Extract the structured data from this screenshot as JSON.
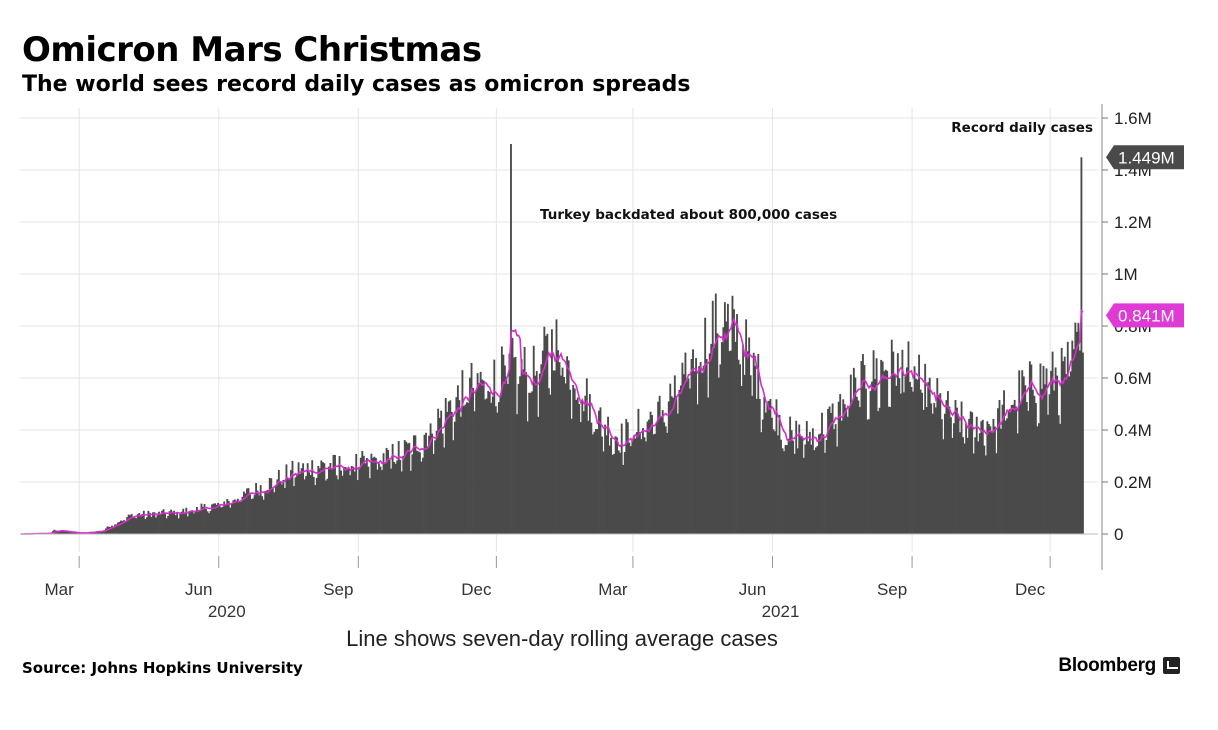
{
  "header": {
    "title": "Omicron Mars Christmas",
    "subtitle": "The world sees record daily cases as omicron spreads"
  },
  "footer": {
    "source": "Source: Johns Hopkins University",
    "brand": "Bloomberg"
  },
  "colors": {
    "bars": "#4a4a4a",
    "average_line": "#d62ecb",
    "latest_value_bg": "#4a4a4a",
    "average_tag_bg": "#e03ad6",
    "grid": "#e6e6e6"
  },
  "chart_data": {
    "type": "bar",
    "title": "Omicron Mars Christmas",
    "subtitle": "The world sees record daily cases as omicron spreads",
    "x_range": [
      "2020-01-22",
      "2021-12-22"
    ],
    "ylim": [
      0,
      1600000
    ],
    "y_ticks": [
      {
        "value": 0,
        "label": "0"
      },
      {
        "value": 200000,
        "label": "0.2M"
      },
      {
        "value": 400000,
        "label": "0.4M"
      },
      {
        "value": 600000,
        "label": "0.6M"
      },
      {
        "value": 800000,
        "label": "0.8M"
      },
      {
        "value": 1000000,
        "label": "1M"
      },
      {
        "value": 1200000,
        "label": "1.2M"
      },
      {
        "value": 1400000,
        "label": "1.4M"
      },
      {
        "value": 1600000,
        "label": "1.6M"
      }
    ],
    "x_ticks": [
      {
        "date": "2020-03-01",
        "label": "Mar"
      },
      {
        "date": "2020-06-01",
        "label": "Jun"
      },
      {
        "date": "2020-09-01",
        "label": "Sep"
      },
      {
        "date": "2020-12-01",
        "label": "Dec"
      },
      {
        "date": "2021-03-01",
        "label": "Mar"
      },
      {
        "date": "2021-06-01",
        "label": "Jun"
      },
      {
        "date": "2021-09-01",
        "label": "Sep"
      },
      {
        "date": "2021-12-01",
        "label": "Dec"
      }
    ],
    "year_labels": [
      {
        "date": "2020-06-01",
        "label": "2020"
      },
      {
        "date": "2021-06-01",
        "label": "2021"
      }
    ],
    "grid": true,
    "y_axis_side": "right",
    "series": [
      {
        "name": "Daily cases",
        "kind": "bar",
        "points": [
          {
            "date": "2020-01-22",
            "value": 0
          },
          {
            "date": "2020-02-10",
            "value": 3000
          },
          {
            "date": "2020-02-13",
            "value": 15000
          },
          {
            "date": "2020-03-01",
            "value": 3000
          },
          {
            "date": "2020-03-15",
            "value": 12000
          },
          {
            "date": "2020-03-25",
            "value": 45000
          },
          {
            "date": "2020-04-05",
            "value": 75000
          },
          {
            "date": "2020-04-20",
            "value": 80000
          },
          {
            "date": "2020-05-05",
            "value": 85000
          },
          {
            "date": "2020-05-20",
            "value": 100000
          },
          {
            "date": "2020-06-01",
            "value": 115000
          },
          {
            "date": "2020-06-20",
            "value": 160000
          },
          {
            "date": "2020-07-05",
            "value": 200000
          },
          {
            "date": "2020-07-20",
            "value": 245000
          },
          {
            "date": "2020-08-05",
            "value": 265000
          },
          {
            "date": "2020-08-20",
            "value": 265000
          },
          {
            "date": "2020-09-05",
            "value": 275000
          },
          {
            "date": "2020-09-20",
            "value": 300000
          },
          {
            "date": "2020-10-05",
            "value": 330000
          },
          {
            "date": "2020-10-20",
            "value": 420000
          },
          {
            "date": "2020-11-01",
            "value": 500000
          },
          {
            "date": "2020-11-15",
            "value": 580000
          },
          {
            "date": "2020-11-30",
            "value": 600000
          },
          {
            "date": "2020-12-10",
            "value": 650000
          },
          {
            "date": "2020-12-25",
            "value": 620000
          },
          {
            "date": "2021-01-08",
            "value": 750000
          },
          {
            "date": "2021-01-20",
            "value": 620000
          },
          {
            "date": "2021-02-05",
            "value": 450000
          },
          {
            "date": "2021-02-20",
            "value": 370000
          },
          {
            "date": "2021-03-05",
            "value": 420000
          },
          {
            "date": "2021-03-20",
            "value": 480000
          },
          {
            "date": "2021-04-05",
            "value": 620000
          },
          {
            "date": "2021-04-20",
            "value": 780000
          },
          {
            "date": "2021-04-30",
            "value": 830000
          },
          {
            "date": "2021-05-10",
            "value": 770000
          },
          {
            "date": "2021-05-25",
            "value": 560000
          },
          {
            "date": "2021-06-10",
            "value": 390000
          },
          {
            "date": "2021-06-25",
            "value": 380000
          },
          {
            "date": "2021-07-10",
            "value": 450000
          },
          {
            "date": "2021-07-25",
            "value": 570000
          },
          {
            "date": "2021-08-10",
            "value": 640000
          },
          {
            "date": "2021-08-25",
            "value": 660000
          },
          {
            "date": "2021-09-10",
            "value": 560000
          },
          {
            "date": "2021-09-25",
            "value": 470000
          },
          {
            "date": "2021-10-10",
            "value": 410000
          },
          {
            "date": "2021-10-25",
            "value": 440000
          },
          {
            "date": "2021-11-10",
            "value": 550000
          },
          {
            "date": "2021-11-25",
            "value": 600000
          },
          {
            "date": "2021-12-10",
            "value": 620000
          },
          {
            "date": "2021-12-20",
            "value": 760000
          },
          {
            "date": "2021-12-22",
            "value": 840000
          }
        ],
        "spikes": [
          {
            "date": "2020-12-10",
            "value": 1500000
          },
          {
            "date": "2021-12-21",
            "value": 1449000
          }
        ]
      },
      {
        "name": "Seven-day rolling average",
        "kind": "line"
      }
    ],
    "annotations": [
      {
        "text": "Turkey backdated about 800,000 cases",
        "date": "2020-12-10",
        "value": 1500000
      },
      {
        "text": "Record daily cases",
        "date": "2021-12-21",
        "value": 1449000
      }
    ],
    "value_tags": [
      {
        "label": "1.449M",
        "value": 1449000,
        "style": "latest"
      },
      {
        "label": "0.841M",
        "value": 841000,
        "style": "average"
      }
    ],
    "note": "Line shows seven-day rolling average cases"
  }
}
